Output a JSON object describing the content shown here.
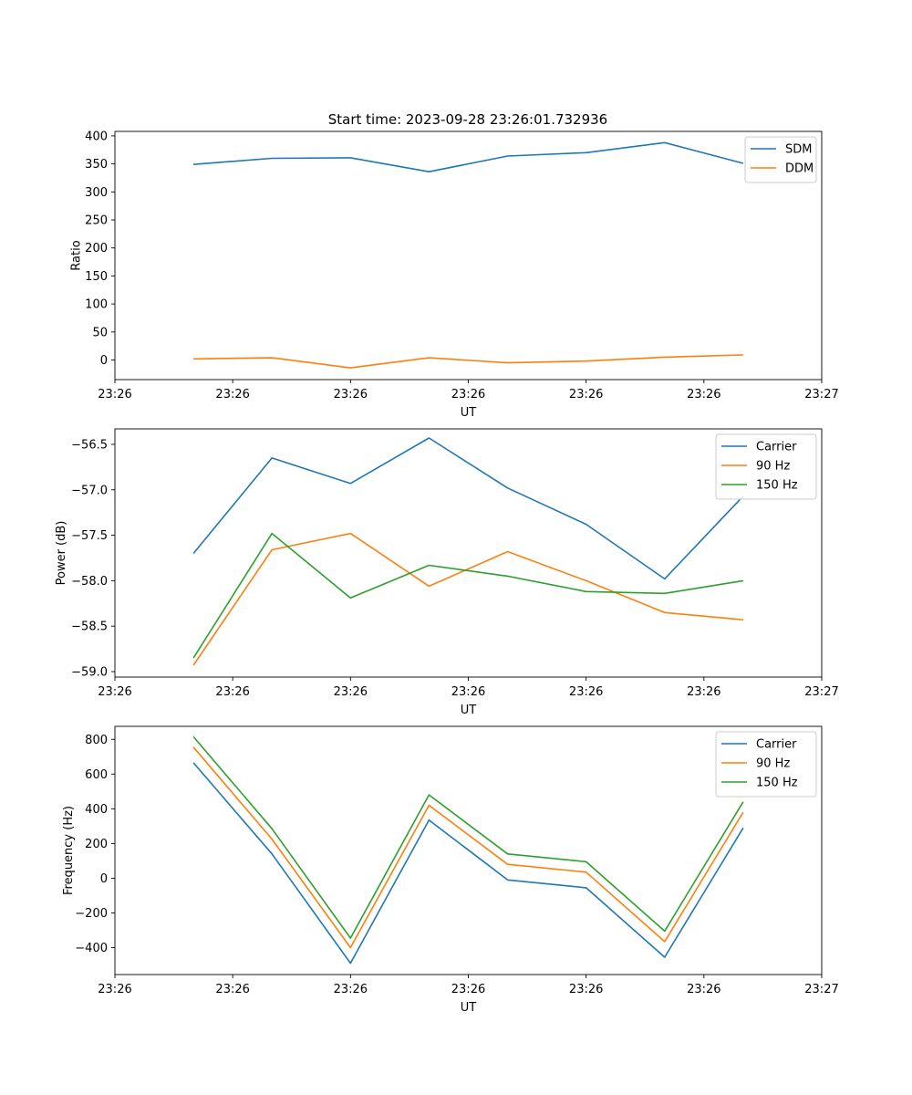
{
  "figure_title": "Start time: 2023-09-28 23:26:01.732936",
  "chart_data": [
    {
      "type": "line",
      "xlabel": "UT",
      "ylabel": "Ratio",
      "xlim": [
        0,
        9
      ],
      "ylim": [
        -35,
        408
      ],
      "x": [
        1,
        2,
        3,
        4,
        5,
        6,
        7,
        8
      ],
      "xticks": [
        0,
        1.5,
        3,
        4.5,
        6,
        7.5,
        9
      ],
      "xtick_labels": [
        "23:26",
        "23:26",
        "23:26",
        "23:26",
        "23:26",
        "23:26",
        "23:27"
      ],
      "yticks": [
        0,
        50,
        100,
        150,
        200,
        250,
        300,
        350,
        400
      ],
      "ytick_labels": [
        "0",
        "50",
        "100",
        "150",
        "200",
        "250",
        "300",
        "350",
        "400"
      ],
      "legend_position": "top-right",
      "series": [
        {
          "name": "SDM",
          "color": "#1f77b4",
          "values": [
            349,
            360,
            361,
            336,
            364,
            370,
            388,
            351
          ]
        },
        {
          "name": "DDM",
          "color": "#ff7f0e",
          "values": [
            2,
            4,
            -14,
            4,
            -5,
            -2,
            5,
            9
          ]
        }
      ]
    },
    {
      "type": "line",
      "xlabel": "UT",
      "ylabel": "Power (dB)",
      "xlim": [
        0,
        9
      ],
      "ylim": [
        -59.06,
        -56.33
      ],
      "x": [
        1,
        2,
        3,
        4,
        5,
        6,
        7,
        8
      ],
      "xticks": [
        0,
        1.5,
        3,
        4.5,
        6,
        7.5,
        9
      ],
      "xtick_labels": [
        "23:26",
        "23:26",
        "23:26",
        "23:26",
        "23:26",
        "23:26",
        "23:27"
      ],
      "yticks": [
        -59.0,
        -58.5,
        -58.0,
        -57.5,
        -57.0,
        -56.5
      ],
      "ytick_labels": [
        "−59.0",
        "−58.5",
        "−58.0",
        "−57.5",
        "−57.0",
        "−56.5"
      ],
      "legend_position": "top-right",
      "series": [
        {
          "name": "Carrier",
          "color": "#1f77b4",
          "values": [
            -57.7,
            -56.65,
            -56.93,
            -56.43,
            -56.98,
            -57.38,
            -57.98,
            -57.07
          ]
        },
        {
          "name": "90 Hz",
          "color": "#ff7f0e",
          "values": [
            -58.93,
            -57.66,
            -57.48,
            -58.06,
            -57.68,
            -58.0,
            -58.35,
            -58.43
          ]
        },
        {
          "name": "150 Hz",
          "color": "#2ca02c",
          "values": [
            -58.85,
            -57.48,
            -58.19,
            -57.83,
            -57.95,
            -58.12,
            -58.14,
            -58.0
          ]
        }
      ]
    },
    {
      "type": "line",
      "xlabel": "UT",
      "ylabel": "Frequency (Hz)",
      "xlim": [
        0,
        9
      ],
      "ylim": [
        -555,
        875
      ],
      "x": [
        1,
        2,
        3,
        4,
        5,
        6,
        7,
        8
      ],
      "xticks": [
        0,
        1.5,
        3,
        4.5,
        6,
        7.5,
        9
      ],
      "xtick_labels": [
        "23:26",
        "23:26",
        "23:26",
        "23:26",
        "23:26",
        "23:26",
        "23:27"
      ],
      "yticks": [
        -400,
        -200,
        0,
        200,
        400,
        600,
        800
      ],
      "ytick_labels": [
        "−400",
        "−200",
        "0",
        "200",
        "400",
        "600",
        "800"
      ],
      "legend_position": "top-right",
      "series": [
        {
          "name": "Carrier",
          "color": "#1f77b4",
          "values": [
            665,
            140,
            -490,
            335,
            -10,
            -55,
            -455,
            290
          ]
        },
        {
          "name": "90 Hz",
          "color": "#ff7f0e",
          "values": [
            755,
            225,
            -400,
            420,
            80,
            35,
            -365,
            380
          ]
        },
        {
          "name": "150 Hz",
          "color": "#2ca02c",
          "values": [
            815,
            285,
            -345,
            480,
            140,
            95,
            -305,
            440
          ]
        }
      ]
    }
  ]
}
